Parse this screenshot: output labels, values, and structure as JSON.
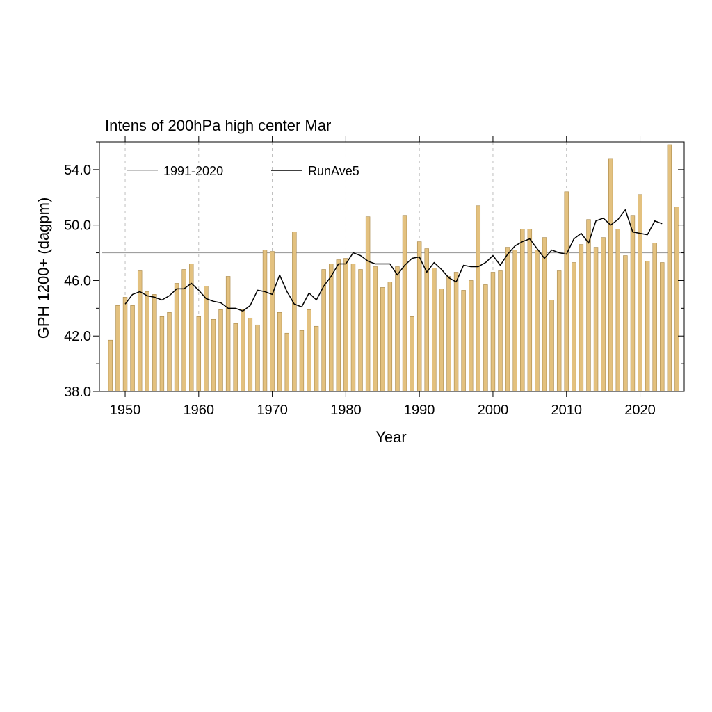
{
  "chart_data": {
    "type": "bar",
    "title": "Intens of 200hPa high center Mar",
    "xlabel": "Year",
    "ylabel": "GPH 1200+ (dagpm)",
    "xlim": [
      1946.5,
      2026
    ],
    "ylim": [
      38.0,
      56.0
    ],
    "x_ticks": [
      1950,
      1960,
      1970,
      1980,
      1990,
      2000,
      2010,
      2020
    ],
    "x_tick_labels": [
      "1950",
      "1960",
      "1970",
      "1980",
      "1990",
      "2000",
      "2010",
      "2020"
    ],
    "y_ticks": [
      38.0,
      42.0,
      46.0,
      50.0,
      54.0
    ],
    "y_tick_labels": [
      "38.0",
      "42.0",
      "46.0",
      "50.0",
      "54.0"
    ],
    "y_minor_ticks": [
      40.0,
      44.0,
      48.0,
      52.0,
      56.0
    ],
    "grid": "vertical dashed at x ticks",
    "legend_position": "top-left",
    "legend": [
      "1991-2020",
      "RunAve5"
    ],
    "colors": {
      "bar_fill": "#e3c17f",
      "bar_edge": "#a8884a",
      "climatology_line": "#a0a0a0",
      "running_mean_line": "#000000",
      "grid": "#b0b0b0"
    },
    "years": [
      1948,
      1949,
      1950,
      1951,
      1952,
      1953,
      1954,
      1955,
      1956,
      1957,
      1958,
      1959,
      1960,
      1961,
      1962,
      1963,
      1964,
      1965,
      1966,
      1967,
      1968,
      1969,
      1970,
      1971,
      1972,
      1973,
      1974,
      1975,
      1976,
      1977,
      1978,
      1979,
      1980,
      1981,
      1982,
      1983,
      1984,
      1985,
      1986,
      1987,
      1988,
      1989,
      1990,
      1991,
      1992,
      1993,
      1994,
      1995,
      1996,
      1997,
      1998,
      1999,
      2000,
      2001,
      2002,
      2003,
      2004,
      2005,
      2006,
      2007,
      2008,
      2009,
      2010,
      2011,
      2012,
      2013,
      2014,
      2015,
      2016,
      2017,
      2018,
      2019,
      2020,
      2021,
      2022,
      2023,
      2024,
      2025
    ],
    "values": [
      41.7,
      44.2,
      44.8,
      44.2,
      46.7,
      45.2,
      45.0,
      43.4,
      43.7,
      45.8,
      46.8,
      47.2,
      43.4,
      45.6,
      43.2,
      43.9,
      46.3,
      42.9,
      43.9,
      43.3,
      42.8,
      48.2,
      48.1,
      43.7,
      42.2,
      49.5,
      42.4,
      43.9,
      42.7,
      46.8,
      47.2,
      47.5,
      47.6,
      47.2,
      46.8,
      50.6,
      47.0,
      45.5,
      45.9,
      47.0,
      50.7,
      43.4,
      48.8,
      48.3,
      46.9,
      45.4,
      46.3,
      46.6,
      45.3,
      46.0,
      51.4,
      45.7,
      46.6,
      46.7,
      48.4,
      48.2,
      49.7,
      49.7,
      48.2,
      49.1,
      44.6,
      46.7,
      52.4,
      47.3,
      48.6,
      50.4,
      48.4,
      49.1,
      54.8,
      49.7,
      47.8,
      50.7,
      52.2,
      47.4,
      48.7,
      47.3,
      55.8,
      51.3
    ],
    "series": [
      {
        "name": "1991-2020",
        "type": "line",
        "x": [
          1948,
          2025
        ],
        "values": [
          48.0,
          48.0
        ]
      },
      {
        "name": "RunAve5",
        "type": "line",
        "x": [
          1950,
          1951,
          1952,
          1953,
          1954,
          1955,
          1956,
          1957,
          1958,
          1959,
          1960,
          1961,
          1962,
          1963,
          1964,
          1965,
          1966,
          1967,
          1968,
          1969,
          1970,
          1971,
          1972,
          1973,
          1974,
          1975,
          1976,
          1977,
          1978,
          1979,
          1980,
          1981,
          1982,
          1983,
          1984,
          1985,
          1986,
          1987,
          1988,
          1989,
          1990,
          1991,
          1992,
          1993,
          1994,
          1995,
          1996,
          1997,
          1998,
          1999,
          2000,
          2001,
          2002,
          2003,
          2004,
          2005,
          2006,
          2007,
          2008,
          2009,
          2010,
          2011,
          2012,
          2013,
          2014,
          2015,
          2016,
          2017,
          2018,
          2019,
          2020,
          2021,
          2022,
          2023
        ],
        "values": [
          44.3,
          45.0,
          45.2,
          44.9,
          44.8,
          44.6,
          44.9,
          45.4,
          45.4,
          45.8,
          45.3,
          44.7,
          44.5,
          44.4,
          44.0,
          44.0,
          43.8,
          44.2,
          45.3,
          45.2,
          45.0,
          46.4,
          45.2,
          44.3,
          44.1,
          45.1,
          44.6,
          45.6,
          46.3,
          47.2,
          47.2,
          48.0,
          47.8,
          47.4,
          47.2,
          47.2,
          47.2,
          46.4,
          47.1,
          47.6,
          47.7,
          46.6,
          47.3,
          46.8,
          46.2,
          45.9,
          47.1,
          47.0,
          47.0,
          47.3,
          47.8,
          47.1,
          47.9,
          48.5,
          48.8,
          49.0,
          48.3,
          47.6,
          48.2,
          48.0,
          47.9,
          49.0,
          49.4,
          48.7,
          50.3,
          50.5,
          50.0,
          50.4,
          51.1,
          49.5,
          49.4,
          49.3,
          50.3,
          50.1
        ]
      }
    ]
  }
}
